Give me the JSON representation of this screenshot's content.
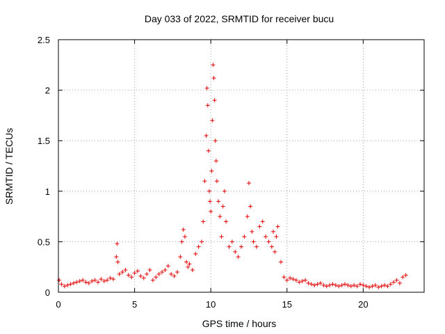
{
  "chart_data": {
    "type": "scatter",
    "title": "Day 033 of 2022, SRMTID for receiver bucu",
    "xlabel": "GPS time / hours",
    "ylabel": "SRMTID / TECUs",
    "xlim": [
      0,
      24
    ],
    "ylim": [
      0,
      2.5
    ],
    "xticks": [
      0,
      5,
      10,
      15,
      20
    ],
    "yticks": [
      0,
      0.5,
      1,
      1.5,
      2,
      2.5
    ],
    "xtick_labels": [
      "0",
      "5",
      "10",
      "15",
      "20"
    ],
    "ytick_labels": [
      "0",
      "0.5",
      "1",
      "1.5",
      "2",
      "2.5"
    ],
    "grid": true,
    "marker": "+",
    "color": "#e00000",
    "series": [
      {
        "name": "SRMTID",
        "x": [
          0.05,
          0.2,
          0.4,
          0.6,
          0.8,
          1.0,
          1.2,
          1.4,
          1.6,
          1.8,
          2.0,
          2.2,
          2.4,
          2.6,
          2.8,
          3.0,
          3.2,
          3.4,
          3.6,
          3.8,
          3.85,
          3.9,
          4.0,
          4.2,
          4.4,
          4.6,
          4.8,
          5.0,
          5.2,
          5.4,
          5.6,
          5.8,
          6.0,
          6.2,
          6.4,
          6.6,
          6.8,
          7.0,
          7.2,
          7.4,
          7.6,
          7.8,
          8.0,
          8.1,
          8.2,
          8.3,
          8.4,
          8.5,
          8.6,
          8.8,
          9.0,
          9.2,
          9.4,
          9.5,
          9.6,
          9.7,
          9.75,
          9.8,
          9.85,
          9.9,
          9.95,
          10.0,
          10.05,
          10.1,
          10.15,
          10.2,
          10.25,
          10.3,
          10.35,
          10.4,
          10.5,
          10.6,
          10.7,
          10.8,
          10.9,
          11.0,
          11.2,
          11.4,
          11.6,
          11.8,
          12.0,
          12.2,
          12.4,
          12.5,
          12.6,
          12.7,
          12.8,
          13.0,
          13.2,
          13.4,
          13.6,
          13.8,
          14.0,
          14.1,
          14.2,
          14.3,
          14.4,
          14.6,
          14.8,
          15.0,
          15.2,
          15.4,
          15.6,
          15.8,
          16.0,
          16.2,
          16.4,
          16.6,
          16.8,
          17.0,
          17.2,
          17.4,
          17.6,
          17.8,
          18.0,
          18.2,
          18.4,
          18.6,
          18.8,
          19.0,
          19.2,
          19.4,
          19.6,
          19.8,
          20.0,
          20.2,
          20.4,
          20.6,
          20.8,
          21.0,
          21.2,
          21.4,
          21.6,
          21.8,
          22.0,
          22.2,
          22.4,
          22.6,
          22.8
        ],
        "y": [
          0.12,
          0.08,
          0.06,
          0.07,
          0.08,
          0.09,
          0.1,
          0.11,
          0.12,
          0.1,
          0.09,
          0.11,
          0.12,
          0.1,
          0.13,
          0.11,
          0.12,
          0.14,
          0.13,
          0.35,
          0.48,
          0.3,
          0.18,
          0.2,
          0.22,
          0.17,
          0.15,
          0.19,
          0.21,
          0.16,
          0.14,
          0.18,
          0.22,
          0.12,
          0.15,
          0.18,
          0.2,
          0.22,
          0.26,
          0.18,
          0.16,
          0.2,
          0.35,
          0.5,
          0.62,
          0.55,
          0.3,
          0.25,
          0.28,
          0.22,
          0.38,
          0.45,
          0.5,
          0.7,
          1.1,
          1.55,
          2.02,
          1.85,
          1.4,
          1.0,
          0.9,
          0.8,
          1.2,
          1.7,
          2.25,
          2.12,
          1.9,
          1.5,
          1.3,
          1.1,
          0.9,
          0.75,
          0.55,
          0.85,
          1.0,
          0.7,
          0.45,
          0.5,
          0.4,
          0.35,
          0.45,
          0.55,
          0.75,
          1.08,
          0.85,
          0.6,
          0.5,
          0.45,
          0.65,
          0.7,
          0.55,
          0.5,
          0.45,
          0.6,
          0.4,
          0.55,
          0.65,
          0.3,
          0.15,
          0.12,
          0.14,
          0.13,
          0.12,
          0.1,
          0.11,
          0.12,
          0.09,
          0.08,
          0.07,
          0.08,
          0.09,
          0.07,
          0.06,
          0.07,
          0.08,
          0.07,
          0.06,
          0.07,
          0.08,
          0.07,
          0.06,
          0.07,
          0.06,
          0.08,
          0.07,
          0.06,
          0.05,
          0.06,
          0.07,
          0.05,
          0.06,
          0.07,
          0.06,
          0.08,
          0.1,
          0.12,
          0.09,
          0.15,
          0.17
        ]
      }
    ]
  }
}
